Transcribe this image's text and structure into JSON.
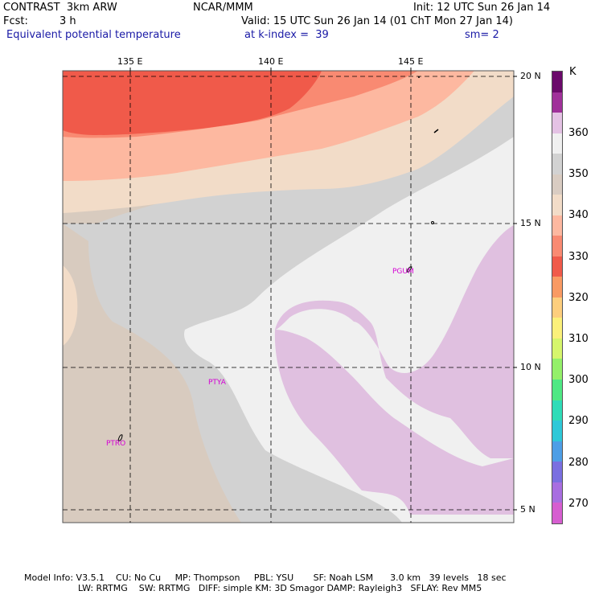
{
  "header": {
    "model": "CONTRAST  3km ARW",
    "org": "NCAR/MMM",
    "init": "Init: 12 UTC Sun 26 Jan 14",
    "fcst_label": "Fcst:",
    "fcst_value": "3 h",
    "valid": "Valid: 15 UTC Sun 26 Jan 14 (01 ChT Mon 27 Jan 14)",
    "field": "Equivalent potential temperature",
    "level": "at k-index =  39",
    "smoothing": "sm= 2"
  },
  "map": {
    "lon_labels": [
      "135 E",
      "140 E",
      "145 E"
    ],
    "lat_labels": [
      "20 N",
      "15 N",
      "10 N",
      "5 N"
    ],
    "stations": [
      "PGUM",
      "PTYA",
      "PTRO"
    ]
  },
  "colorbar": {
    "unit": "K",
    "labels": [
      "360",
      "350",
      "340",
      "330",
      "320",
      "310",
      "300",
      "290",
      "280",
      "270"
    ],
    "colors": [
      "#6b0a6b",
      "#a0319a",
      "#e4c2e4",
      "#f0f0f0",
      "#d2d2d2",
      "#d9ccc2",
      "#f2dcc8",
      "#fdb8a0",
      "#f98a72",
      "#f05a4a",
      "#f99a63",
      "#fdce7d",
      "#fbf07a",
      "#d6f56c",
      "#94f06a",
      "#4fe884",
      "#2fdcb8",
      "#2fc8d8",
      "#4e9ee6",
      "#7a6fe0",
      "#a86ee0",
      "#d65ed0"
    ]
  },
  "footer": {
    "line1": "Model Info: V3.5.1    CU: No Cu     MP: Thompson     PBL: YSU       SF: Noah LSM      3.0 km   39 levels   18 sec",
    "line2": "LW: RRTMG    SW: RRTMG   DIFF: simple KM: 3D Smagor DAMP: Rayleigh3   SFLAY: Rev MM5"
  }
}
